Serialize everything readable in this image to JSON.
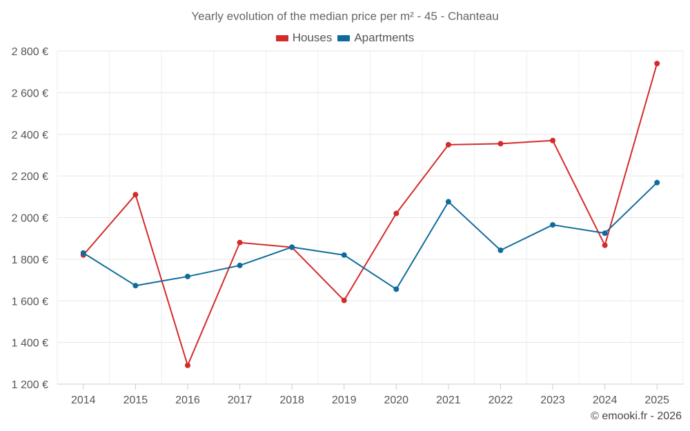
{
  "chart_data": {
    "type": "line",
    "title": "Yearly evolution of the median price per m² - 45 - Chanteau",
    "categories": [
      "2014",
      "2015",
      "2016",
      "2017",
      "2018",
      "2019",
      "2020",
      "2021",
      "2022",
      "2023",
      "2024",
      "2025"
    ],
    "series": [
      {
        "name": "Houses",
        "color": "#d42a2a",
        "values": [
          1820,
          2110,
          1290,
          1880,
          1857,
          1602,
          2020,
          2350,
          2355,
          2370,
          1867,
          2740
        ]
      },
      {
        "name": "Apartments",
        "color": "#0f6b9c",
        "values": [
          1830,
          1673,
          1717,
          1770,
          1858,
          1820,
          1656,
          2076,
          1843,
          1965,
          1925,
          2168
        ]
      }
    ],
    "ylim": [
      1200,
      2800
    ],
    "yticks": [
      1200,
      1400,
      1600,
      1800,
      2000,
      2200,
      2400,
      2600,
      2800
    ],
    "ytick_labels": [
      "1 200 €",
      "1 400 €",
      "1 600 €",
      "1 800 €",
      "2 000 €",
      "2 200 €",
      "2 400 €",
      "2 600 €",
      "2 800 €"
    ],
    "xlabel": "",
    "ylabel": "",
    "grid": true,
    "legend_position": "top-center"
  },
  "credit": "© emooki.fr - 2026"
}
